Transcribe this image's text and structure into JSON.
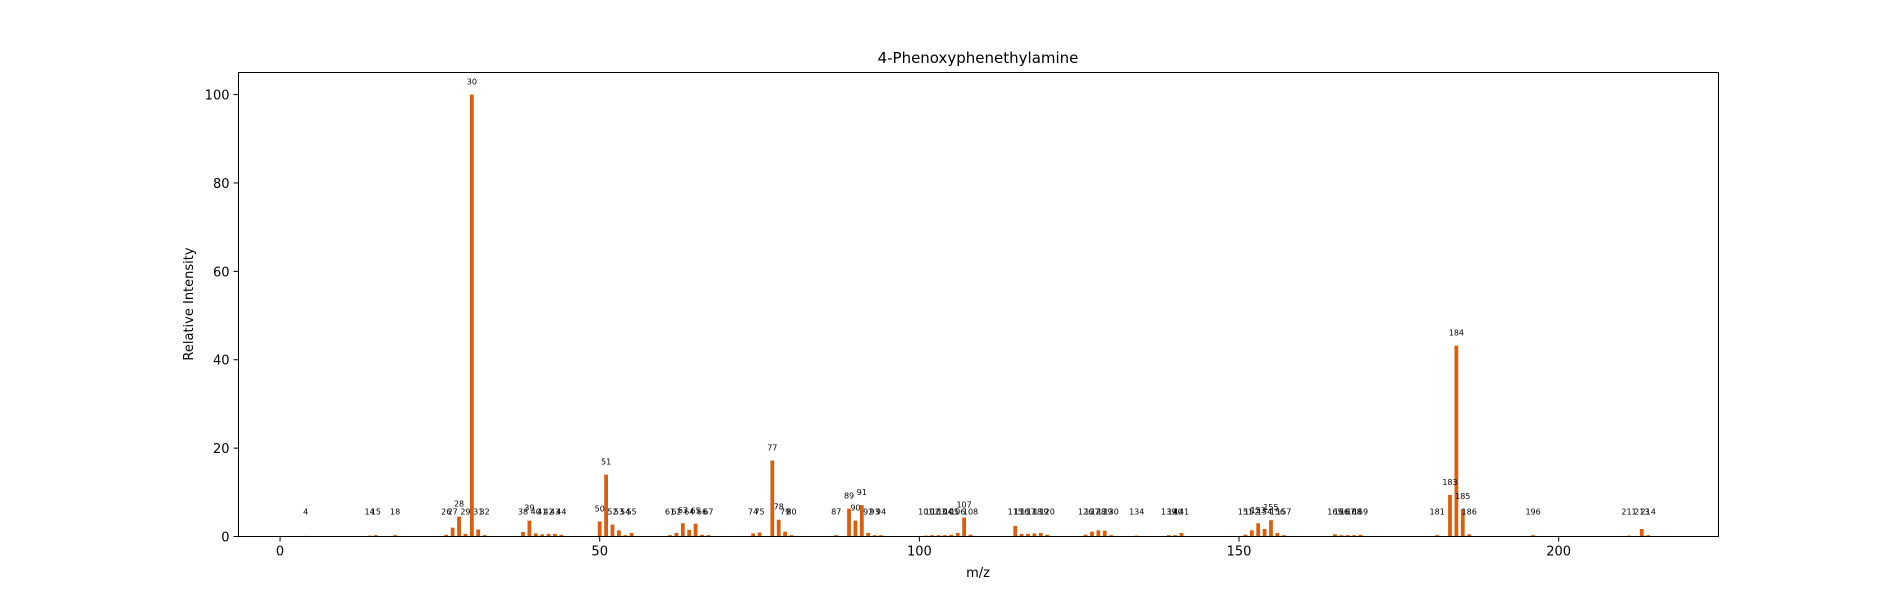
{
  "chart_data": {
    "type": "bar",
    "title": "4-Phenoxyphenethylamine",
    "xlabel": "m/z",
    "ylabel": "Relative Intensity",
    "xlim": [
      -6.5,
      225
    ],
    "ylim": [
      0,
      105
    ],
    "x_ticks": [
      0,
      50,
      100,
      150,
      200
    ],
    "y_ticks": [
      0,
      20,
      40,
      60,
      80,
      100
    ],
    "bar_color": "#d95f0e",
    "grid": false,
    "series": [
      {
        "peaks": [
          {
            "mz": 4,
            "intensity": 0.1
          },
          {
            "mz": 14,
            "intensity": 0.2
          },
          {
            "mz": 15,
            "intensity": 0.3
          },
          {
            "mz": 18,
            "intensity": 0.3
          },
          {
            "mz": 26,
            "intensity": 0.4
          },
          {
            "mz": 27,
            "intensity": 2.0
          },
          {
            "mz": 28,
            "intensity": 4.5
          },
          {
            "mz": 29,
            "intensity": 0.6
          },
          {
            "mz": 30,
            "intensity": 100
          },
          {
            "mz": 31,
            "intensity": 1.6
          },
          {
            "mz": 32,
            "intensity": 0.3
          },
          {
            "mz": 38,
            "intensity": 1.0
          },
          {
            "mz": 39,
            "intensity": 3.6
          },
          {
            "mz": 40,
            "intensity": 0.7
          },
          {
            "mz": 41,
            "intensity": 0.5
          },
          {
            "mz": 42,
            "intensity": 0.6
          },
          {
            "mz": 43,
            "intensity": 0.6
          },
          {
            "mz": 44,
            "intensity": 0.4
          },
          {
            "mz": 50,
            "intensity": 3.4
          },
          {
            "mz": 51,
            "intensity": 14.0
          },
          {
            "mz": 52,
            "intensity": 2.7
          },
          {
            "mz": 53,
            "intensity": 1.4
          },
          {
            "mz": 54,
            "intensity": 0.3
          },
          {
            "mz": 55,
            "intensity": 0.8
          },
          {
            "mz": 61,
            "intensity": 0.3
          },
          {
            "mz": 62,
            "intensity": 0.8
          },
          {
            "mz": 63,
            "intensity": 3.0
          },
          {
            "mz": 64,
            "intensity": 1.5
          },
          {
            "mz": 65,
            "intensity": 2.9
          },
          {
            "mz": 66,
            "intensity": 0.4
          },
          {
            "mz": 67,
            "intensity": 0.3
          },
          {
            "mz": 74,
            "intensity": 0.7
          },
          {
            "mz": 75,
            "intensity": 0.9
          },
          {
            "mz": 77,
            "intensity": 17.2
          },
          {
            "mz": 78,
            "intensity": 3.8
          },
          {
            "mz": 79,
            "intensity": 1.1
          },
          {
            "mz": 80,
            "intensity": 0.3
          },
          {
            "mz": 87,
            "intensity": 0.3
          },
          {
            "mz": 89,
            "intensity": 6.3
          },
          {
            "mz": 90,
            "intensity": 3.6
          },
          {
            "mz": 91,
            "intensity": 7.1
          },
          {
            "mz": 92,
            "intensity": 0.8
          },
          {
            "mz": 93,
            "intensity": 0.3
          },
          {
            "mz": 94,
            "intensity": 0.3
          },
          {
            "mz": 101,
            "intensity": 0.2
          },
          {
            "mz": 102,
            "intensity": 0.3
          },
          {
            "mz": 103,
            "intensity": 0.3
          },
          {
            "mz": 104,
            "intensity": 0.3
          },
          {
            "mz": 105,
            "intensity": 0.4
          },
          {
            "mz": 106,
            "intensity": 0.8
          },
          {
            "mz": 107,
            "intensity": 4.3
          },
          {
            "mz": 108,
            "intensity": 0.4
          },
          {
            "mz": 115,
            "intensity": 2.4
          },
          {
            "mz": 116,
            "intensity": 0.6
          },
          {
            "mz": 117,
            "intensity": 0.6
          },
          {
            "mz": 118,
            "intensity": 0.7
          },
          {
            "mz": 119,
            "intensity": 0.8
          },
          {
            "mz": 120,
            "intensity": 0.4
          },
          {
            "mz": 126,
            "intensity": 0.4
          },
          {
            "mz": 127,
            "intensity": 1.1
          },
          {
            "mz": 128,
            "intensity": 1.4
          },
          {
            "mz": 129,
            "intensity": 1.3
          },
          {
            "mz": 130,
            "intensity": 0.3
          },
          {
            "mz": 134,
            "intensity": 0.2
          },
          {
            "mz": 139,
            "intensity": 0.3
          },
          {
            "mz": 140,
            "intensity": 0.3
          },
          {
            "mz": 141,
            "intensity": 0.8
          },
          {
            "mz": 151,
            "intensity": 0.4
          },
          {
            "mz": 152,
            "intensity": 1.4
          },
          {
            "mz": 153,
            "intensity": 3.0
          },
          {
            "mz": 154,
            "intensity": 1.7
          },
          {
            "mz": 155,
            "intensity": 3.7
          },
          {
            "mz": 156,
            "intensity": 0.8
          },
          {
            "mz": 157,
            "intensity": 0.3
          },
          {
            "mz": 165,
            "intensity": 0.5
          },
          {
            "mz": 166,
            "intensity": 0.3
          },
          {
            "mz": 167,
            "intensity": 0.3
          },
          {
            "mz": 168,
            "intensity": 0.3
          },
          {
            "mz": 169,
            "intensity": 0.4
          },
          {
            "mz": 181,
            "intensity": 0.3
          },
          {
            "mz": 183,
            "intensity": 9.4
          },
          {
            "mz": 184,
            "intensity": 43.2
          },
          {
            "mz": 185,
            "intensity": 6.2
          },
          {
            "mz": 186,
            "intensity": 0.5
          },
          {
            "mz": 196,
            "intensity": 0.3
          },
          {
            "mz": 211,
            "intensity": 0.2
          },
          {
            "mz": 213,
            "intensity": 1.7
          },
          {
            "mz": 214,
            "intensity": 0.3
          }
        ]
      }
    ]
  }
}
